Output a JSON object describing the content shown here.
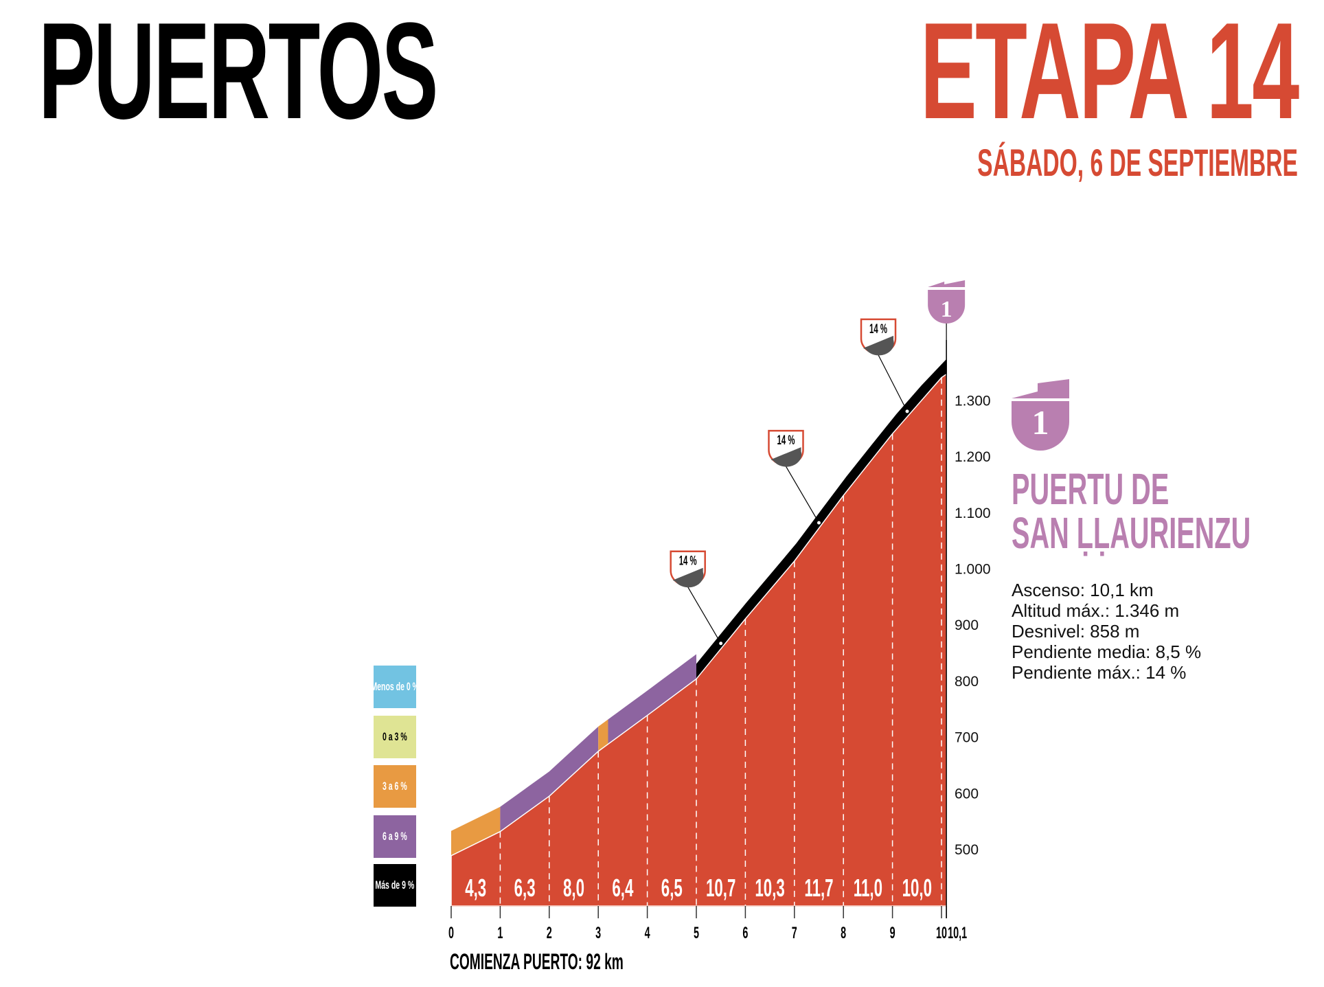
{
  "header": {
    "title": "PUERTOS",
    "stage": "ETAPA 14",
    "date": "SÁBADO, 6 DE SEPTIEMBRE"
  },
  "climb": {
    "category": "1",
    "name_line1": "PUERTU DE",
    "name_line2": "SAN ḶḶAURIENZU",
    "stats": [
      "Ascenso: 10,1 km",
      "Altitud máx.: 1.346 m",
      "Desnivel: 858 m",
      "Pendiente media: 8,5 %",
      "Pendiente máx.: 14 %"
    ],
    "badge_color": "#b97fb0"
  },
  "legend": [
    {
      "label": "Menos de 0 %",
      "color": "#72c3e2",
      "text_color": "#ffffff"
    },
    {
      "label": "0 a 3 %",
      "color": "#dfe494",
      "text_color": "#000000"
    },
    {
      "label": "3 a 6 %",
      "color": "#e89a42",
      "text_color": "#ffffff"
    },
    {
      "label": "6 a 9 %",
      "color": "#8d64a0",
      "text_color": "#ffffff"
    },
    {
      "label": "Más de 9 %",
      "color": "#000000",
      "text_color": "#ffffff"
    }
  ],
  "start_label": "COMIENZA PUERTO: 92 km",
  "chart_data": {
    "type": "area",
    "xlabel": "",
    "ylabel": "",
    "x_ticks": [
      "0",
      "1",
      "2",
      "3",
      "4",
      "5",
      "6",
      "7",
      "8",
      "9",
      "10",
      "10,1"
    ],
    "y_ticks": [
      "500",
      "600",
      "700",
      "800",
      "900",
      "1.000",
      "1.100",
      "1.200",
      "1.300"
    ],
    "y_tick_values": [
      500,
      600,
      700,
      800,
      900,
      1000,
      1100,
      1200,
      1300
    ],
    "xlim": [
      0,
      10.1
    ],
    "ylim": [
      400,
      1346
    ],
    "profile": {
      "x": [
        0,
        1,
        2,
        3,
        4,
        5,
        6,
        7,
        8,
        9,
        10,
        10.1
      ],
      "y": [
        488,
        531,
        594,
        674,
        738,
        803,
        910,
        1013,
        1130,
        1240,
        1340,
        1346
      ]
    },
    "km_gradients": [
      "4,3",
      "6,3",
      "8,0",
      "6,4",
      "6,5",
      "10,7",
      "10,3",
      "11,7",
      "11,0",
      "10,0"
    ],
    "gradient_band": [
      {
        "from": 0,
        "to": 1,
        "class": "3 a 6 %"
      },
      {
        "from": 1,
        "to": 3,
        "class": "6 a 9 %"
      },
      {
        "from": 3,
        "to": 3.2,
        "class": "3 a 6 %"
      },
      {
        "from": 3.2,
        "to": 5,
        "class": "6 a 9 %"
      },
      {
        "from": 5,
        "to": 10.1,
        "class": "Más de 9 %"
      }
    ],
    "max_gradient_markers": [
      {
        "km": 5.5,
        "label": "14 %"
      },
      {
        "km": 7.5,
        "label": "14 %"
      },
      {
        "km": 9.3,
        "label": "14 %"
      }
    ],
    "fill_color": "#d64a33"
  }
}
